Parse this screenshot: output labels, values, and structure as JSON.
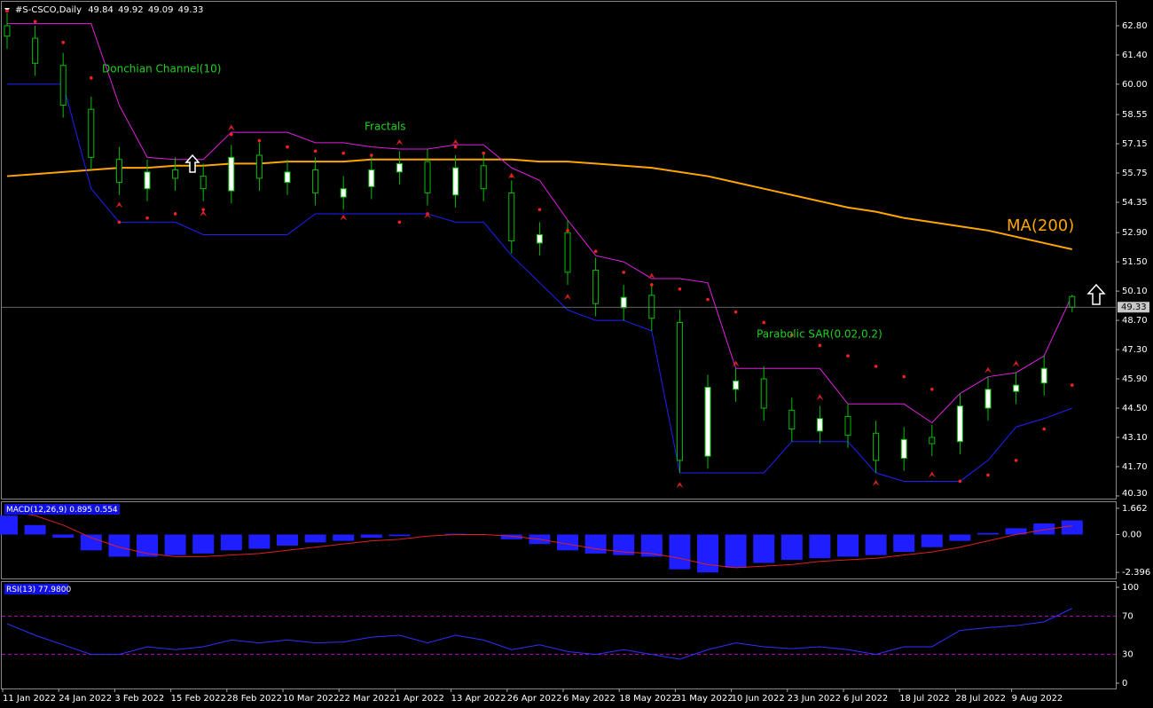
{
  "chart_data": [
    {
      "type": "candlestick",
      "title": "#S-CSCO,Daily",
      "categories": [
        "11 Jan 2022",
        null,
        "24 Jan 2022",
        null,
        "3 Feb 2022",
        null,
        "15 Feb 2022",
        null,
        "28 Feb 2022",
        null,
        "10 Mar 2022",
        null,
        "22 Mar 2022",
        null,
        "1 Apr 2022",
        null,
        "13 Apr 2022",
        null,
        "26 Apr 2022",
        null,
        "6 May 2022",
        null,
        "18 May 2022",
        null,
        "31 May 2022",
        null,
        "10 Jun 2022",
        null,
        "23 Jun 2022",
        null,
        "6 Jul 2022",
        null,
        "18 Jul 2022",
        null,
        "28 Jul 2022",
        null,
        "9 Aug 2022",
        null,
        null
      ],
      "open": [
        62.8,
        62.2,
        60.9,
        58.8,
        56.4,
        55.0,
        55.9,
        55.6,
        54.9,
        56.6,
        55.3,
        55.9,
        54.6,
        55.1,
        55.8,
        56.3,
        54.7,
        56.1,
        54.8,
        52.4,
        52.9,
        51.1,
        49.3,
        49.9,
        48.6,
        42.2,
        45.4,
        45.9,
        44.4,
        43.4,
        44.1,
        43.3,
        42.1,
        43.1,
        42.9,
        44.5,
        45.3,
        45.7,
        49.84
      ],
      "high": [
        63.4,
        62.8,
        61.5,
        59.4,
        57.0,
        56.4,
        56.5,
        56.2,
        57.1,
        57.2,
        56.4,
        56.5,
        55.6,
        56.5,
        56.8,
        56.9,
        56.6,
        56.7,
        55.4,
        53.4,
        53.5,
        51.7,
        50.4,
        50.5,
        49.2,
        46.1,
        46.4,
        46.5,
        45.0,
        44.6,
        44.7,
        43.9,
        43.6,
        43.7,
        45.2,
        46.0,
        46.2,
        47.0,
        49.92
      ],
      "low": [
        61.7,
        60.4,
        58.4,
        55.9,
        54.7,
        54.4,
        54.9,
        54.4,
        54.3,
        54.9,
        54.7,
        54.2,
        54.0,
        54.5,
        55.2,
        54.2,
        54.1,
        54.4,
        51.9,
        51.8,
        50.4,
        48.9,
        48.7,
        48.2,
        41.4,
        41.6,
        44.8,
        43.9,
        42.9,
        42.8,
        42.6,
        41.4,
        41.5,
        42.2,
        42.3,
        43.9,
        44.7,
        45.1,
        49.09
      ],
      "close": [
        62.3,
        61.0,
        59.0,
        56.5,
        55.3,
        55.8,
        55.5,
        55.0,
        56.5,
        55.5,
        55.8,
        54.8,
        55.0,
        55.9,
        56.2,
        54.8,
        56.0,
        55.0,
        52.5,
        52.8,
        51.0,
        49.5,
        49.8,
        48.8,
        42.0,
        45.5,
        45.8,
        44.5,
        43.5,
        44.0,
        43.2,
        42.0,
        43.0,
        42.8,
        44.6,
        45.4,
        45.6,
        46.4,
        49.33
      ],
      "up_color": "#ffffff",
      "down_color": "#000000",
      "wick_color": "#00c000",
      "ylim": [
        40.17,
        64.03
      ],
      "yticks": [
        {
          "value": 62.8,
          "label": "62.80"
        },
        {
          "value": 61.4,
          "label": "61.40"
        },
        {
          "value": 60,
          "label": "60.00"
        },
        58.55,
        57.15,
        55.75,
        54.35,
        {
          "value": 52.9,
          "label": "52.90"
        },
        {
          "value": 51.5,
          "label": "51.50"
        },
        {
          "value": 50.1,
          "label": "50.10"
        },
        {
          "value": 48.7,
          "label": "48.70"
        },
        {
          "value": 47.3,
          "label": "47.30"
        },
        {
          "value": 45.9,
          "label": "45.90"
        },
        {
          "value": 44.5,
          "label": "44.50"
        },
        {
          "value": 43.1,
          "label": "43.10"
        },
        {
          "value": 41.7,
          "label": "41.70"
        },
        {
          "value": 40.3,
          "label": "40.30"
        }
      ],
      "ma": {
        "name": "MA(200)",
        "color": "#ffa500",
        "values": [
          55.6,
          55.7,
          55.8,
          55.9,
          56.0,
          56.0,
          56.1,
          56.1,
          56.2,
          56.2,
          56.3,
          56.3,
          56.3,
          56.4,
          56.4,
          56.4,
          56.4,
          56.4,
          56.4,
          56.3,
          56.3,
          56.2,
          56.1,
          56.0,
          55.8,
          55.6,
          55.3,
          55.0,
          54.7,
          54.4,
          54.1,
          53.9,
          53.6,
          53.4,
          53.2,
          53.0,
          52.7,
          52.4,
          52.1
        ]
      },
      "donchian": {
        "name": "Donchian Channel(10)",
        "upper_color": "#e020e0",
        "lower_color": "#2020ff",
        "upper": [
          62.9,
          62.9,
          62.9,
          62.9,
          59.0,
          56.5,
          56.4,
          56.4,
          57.7,
          57.7,
          57.7,
          57.2,
          57.2,
          57.0,
          56.9,
          56.9,
          57.1,
          57.1,
          56.0,
          55.4,
          53.5,
          51.8,
          51.5,
          50.7,
          50.7,
          50.5,
          46.4,
          46.4,
          46.4,
          46.4,
          44.7,
          44.7,
          44.7,
          43.8,
          45.2,
          46.0,
          46.2,
          47.0,
          49.9
        ],
        "lower": [
          60.0,
          60.0,
          60.0,
          55.0,
          53.4,
          53.4,
          53.4,
          52.8,
          52.8,
          52.8,
          52.8,
          53.8,
          53.8,
          53.8,
          53.8,
          53.8,
          53.4,
          53.4,
          51.8,
          50.5,
          49.2,
          48.7,
          48.7,
          48.2,
          41.4,
          41.4,
          41.4,
          41.4,
          42.9,
          42.9,
          42.9,
          41.4,
          41.0,
          41.0,
          41.0,
          42.0,
          43.6,
          44.0,
          44.5
        ]
      },
      "sar": {
        "name": "Parabolic SAR(0.02,0.2)",
        "color": "#ff2020",
        "values": [
          63.5,
          63.0,
          62.0,
          60.3,
          53.4,
          53.6,
          53.8,
          54.0,
          57.6,
          57.3,
          57.0,
          56.8,
          56.7,
          56.6,
          53.4,
          53.8,
          57.0,
          56.7,
          55.6,
          54.0,
          53.0,
          52.0,
          51.0,
          50.4,
          50.2,
          49.7,
          49.1,
          48.6,
          48.0,
          47.5,
          47.0,
          46.5,
          46.0,
          45.4,
          41.0,
          41.3,
          42.0,
          43.5,
          45.6
        ]
      },
      "fractals": {
        "name": "Fractals",
        "color": "#d02020",
        "up": [
          null,
          null,
          null,
          null,
          null,
          null,
          null,
          null,
          57.9,
          null,
          null,
          null,
          null,
          null,
          57.2,
          null,
          57.2,
          null,
          55.6,
          null,
          null,
          null,
          null,
          50.8,
          null,
          null,
          46.6,
          null,
          null,
          45.0,
          null,
          null,
          null,
          null,
          null,
          46.3,
          46.6,
          null,
          null
        ],
        "down": [
          null,
          null,
          null,
          null,
          54.2,
          null,
          null,
          53.8,
          null,
          null,
          null,
          null,
          53.6,
          null,
          null,
          53.7,
          null,
          null,
          null,
          null,
          49.8,
          null,
          null,
          null,
          40.8,
          null,
          null,
          null,
          null,
          null,
          null,
          40.9,
          null,
          41.3,
          null,
          null,
          null,
          null,
          null
        ]
      }
    },
    {
      "type": "macd",
      "name": "MACD(12,26,9)",
      "hist_color": "#1e1eff",
      "signal_color": "#e02020",
      "values": [
        1.2,
        0.6,
        -0.2,
        -1.0,
        -1.4,
        -1.4,
        -1.3,
        -1.2,
        -1.0,
        -0.9,
        -0.7,
        -0.5,
        -0.4,
        -0.2,
        -0.1,
        0.0,
        0.05,
        0.0,
        -0.3,
        -0.6,
        -1.0,
        -1.2,
        -1.3,
        -1.4,
        -2.2,
        -2.4,
        -2.1,
        -1.8,
        -1.6,
        -1.5,
        -1.4,
        -1.3,
        -1.1,
        -0.8,
        -0.4,
        0.1,
        0.4,
        0.7,
        0.895
      ],
      "signal": [
        1.5,
        1.2,
        0.6,
        -0.2,
        -0.8,
        -1.2,
        -1.4,
        -1.4,
        -1.3,
        -1.2,
        -1.0,
        -0.8,
        -0.6,
        -0.4,
        -0.3,
        -0.1,
        0.0,
        0.0,
        -0.1,
        -0.3,
        -0.6,
        -0.9,
        -1.1,
        -1.2,
        -1.5,
        -1.9,
        -2.1,
        -2.0,
        -1.9,
        -1.7,
        -1.6,
        -1.5,
        -1.3,
        -1.1,
        -0.8,
        -0.4,
        0.0,
        0.3,
        0.554
      ],
      "ylim": [
        -2.78,
        2.05
      ],
      "yticks": [
        1.662,
        {
          "value": 0,
          "label": "0.00"
        },
        -2.396
      ]
    },
    {
      "type": "rsi",
      "name": "RSI(13)",
      "color": "#3030ff",
      "level_color": "#c000c0",
      "values": [
        62,
        50,
        40,
        30,
        30,
        38,
        35,
        38,
        45,
        42,
        45,
        42,
        43,
        48,
        50,
        42,
        50,
        45,
        35,
        40,
        33,
        30,
        35,
        30,
        25,
        35,
        42,
        38,
        36,
        38,
        35,
        30,
        38,
        38,
        55,
        58,
        60,
        64,
        77.98
      ],
      "value_label": "77.9800",
      "ylim": [
        -5.5,
        105.5
      ],
      "yticks": [
        100,
        0
      ],
      "levels": [
        70,
        30
      ]
    }
  ]
}
